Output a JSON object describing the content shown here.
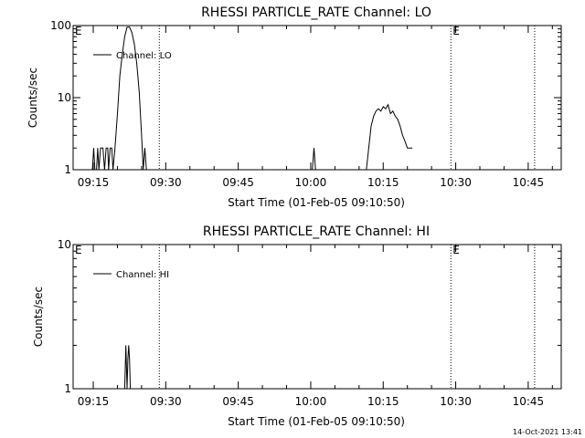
{
  "chart_data": [
    {
      "type": "line",
      "title": "RHESSI PARTICLE_RATE Channel: LO",
      "xlabel": "Start Time (01-Feb-05 09:10:50)",
      "ylabel": "Counts/sec",
      "yscale": "log",
      "ylim": [
        1,
        100
      ],
      "xlim": [
        "09:10:50",
        "10:51:50"
      ],
      "x_ticks": [
        "09:15",
        "09:30",
        "09:45",
        "10:00",
        "10:15",
        "10:30",
        "10:45"
      ],
      "y_ticks": [
        "1",
        "10",
        "100"
      ],
      "legend": "top-left",
      "markers": [
        {
          "label": "E",
          "time": "09:10:50"
        },
        {
          "label": "",
          "time": "09:28:40"
        },
        {
          "label": "E",
          "time": "10:29:00"
        },
        {
          "label": "",
          "time": "10:46:20"
        }
      ],
      "series": [
        {
          "name": "Channel: LO",
          "segments": [
            [
              [
                "09:14:50",
                1
              ],
              [
                "09:15:05",
                2
              ],
              [
                "09:15:20",
                1
              ],
              [
                "09:15:40",
                1
              ],
              [
                "09:15:55",
                2
              ],
              [
                "09:16:10",
                1
              ],
              [
                "09:16:30",
                2
              ],
              [
                "09:17:00",
                2
              ],
              [
                "09:17:20",
                1
              ],
              [
                "09:17:40",
                2
              ],
              [
                "09:18:00",
                2
              ],
              [
                "09:18:10",
                1
              ],
              [
                "09:18:30",
                2
              ],
              [
                "09:18:50",
                2
              ],
              [
                "09:19:05",
                1
              ],
              [
                "09:19:30",
                2
              ],
              [
                "09:20:00",
                6
              ],
              [
                "09:20:30",
                20
              ],
              [
                "09:21:00",
                40
              ],
              [
                "09:21:30",
                70
              ],
              [
                "09:22:00",
                95
              ],
              [
                "09:22:30",
                95
              ],
              [
                "09:23:00",
                80
              ],
              [
                "09:23:30",
                55
              ],
              [
                "09:24:00",
                30
              ],
              [
                "09:24:30",
                12
              ],
              [
                "09:25:00",
                3
              ],
              [
                "09:25:20",
                1
              ],
              [
                "09:25:40",
                2
              ],
              [
                "09:26:00",
                1
              ],
              [
                "09:26:20",
                1
              ]
            ],
            [
              [
                "10:00:20",
                1
              ],
              [
                "10:00:40",
                2
              ],
              [
                "10:01:00",
                1
              ]
            ],
            [
              [
                "10:11:30",
                1
              ],
              [
                "10:12:00",
                2
              ],
              [
                "10:12:30",
                4
              ],
              [
                "10:13:00",
                5.5
              ],
              [
                "10:13:30",
                6.5
              ],
              [
                "10:14:00",
                7
              ],
              [
                "10:14:30",
                6.5
              ],
              [
                "10:15:00",
                7.5
              ],
              [
                "10:15:30",
                7
              ],
              [
                "10:16:00",
                8
              ],
              [
                "10:16:30",
                6
              ],
              [
                "10:17:00",
                6.5
              ],
              [
                "10:17:30",
                5.5
              ],
              [
                "10:18:00",
                5
              ],
              [
                "10:18:30",
                4
              ],
              [
                "10:19:00",
                3
              ],
              [
                "10:19:30",
                2.5
              ],
              [
                "10:20:00",
                2
              ],
              [
                "10:21:00",
                2
              ]
            ]
          ]
        }
      ]
    },
    {
      "type": "line",
      "title": "RHESSI PARTICLE_RATE Channel: HI",
      "xlabel": "Start Time (01-Feb-05 09:10:50)",
      "ylabel": "Counts/sec",
      "yscale": "log",
      "ylim": [
        1,
        10
      ],
      "xlim": [
        "09:10:50",
        "10:51:50"
      ],
      "x_ticks": [
        "09:15",
        "09:30",
        "09:45",
        "10:00",
        "10:15",
        "10:30",
        "10:45"
      ],
      "y_ticks": [
        "1",
        "10"
      ],
      "legend": "top-left",
      "markers": [
        {
          "label": "E",
          "time": "09:10:50"
        },
        {
          "label": "",
          "time": "09:28:40"
        },
        {
          "label": "E",
          "time": "10:29:00"
        },
        {
          "label": "",
          "time": "10:46:20"
        }
      ],
      "series": [
        {
          "name": "Channel: HI",
          "segments": [
            [
              [
                "09:21:30",
                1
              ],
              [
                "09:21:45",
                2
              ],
              [
                "09:22:00",
                1
              ],
              [
                "09:22:10",
                1.6
              ],
              [
                "09:22:20",
                2
              ],
              [
                "09:22:30",
                1.6
              ],
              [
                "09:22:40",
                1
              ]
            ]
          ]
        }
      ]
    }
  ],
  "footer": {
    "timestamp": "14-Oct-2021 13:41"
  }
}
